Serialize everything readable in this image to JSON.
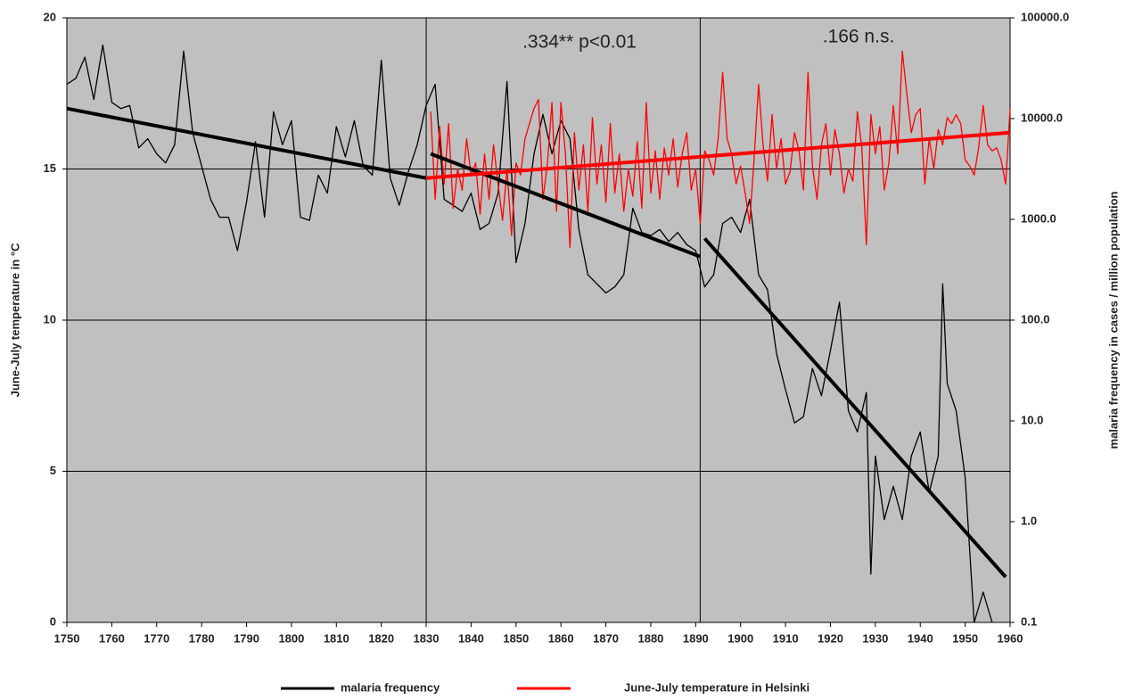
{
  "chart_data": {
    "type": "line",
    "y_label": "June-July temperature in °C",
    "y2_label": "malaria frequency in cases / million population",
    "annotations": [
      ".334** p<0.01",
      ".166 n.s."
    ],
    "xlim": [
      1750,
      1960
    ],
    "xticks": [
      1750,
      1760,
      1770,
      1780,
      1790,
      1800,
      1810,
      1820,
      1830,
      1840,
      1850,
      1860,
      1870,
      1880,
      1890,
      1900,
      1910,
      1920,
      1930,
      1940,
      1950,
      1960
    ],
    "ylim": [
      0,
      20
    ],
    "yticks": [
      0,
      5,
      10,
      15,
      20
    ],
    "y2lim": [
      0.1,
      100000
    ],
    "y2_log": true,
    "y2ticks": [
      0.1,
      {
        "value": 1,
        "label": "1.0"
      },
      {
        "value": 10,
        "label": "10.0"
      },
      {
        "value": 100,
        "label": "100.0"
      },
      {
        "value": 1000,
        "label": "1000.0"
      },
      {
        "value": 10000,
        "label": "10000.0"
      },
      {
        "value": 100000,
        "label": "100000.0"
      }
    ],
    "grid": true,
    "dividers": [
      1830,
      1891
    ],
    "legend": "bottom",
    "series": [
      {
        "name": "malaria frequency",
        "color": "#000000",
        "axis": "y2",
        "x": [
          1750,
          1752,
          1754,
          1756,
          1758,
          1760,
          1762,
          1764,
          1766,
          1768,
          1770,
          1772,
          1774,
          1776,
          1778,
          1780,
          1782,
          1784,
          1786,
          1788,
          1790,
          1792,
          1794,
          1796,
          1798,
          1800,
          1802,
          1804,
          1806,
          1808,
          1810,
          1812,
          1814,
          1816,
          1818,
          1820,
          1822,
          1824,
          1826,
          1828,
          1830,
          1832,
          1834,
          1836,
          1838,
          1840,
          1842,
          1844,
          1846,
          1848,
          1850,
          1852,
          1854,
          1856,
          1858,
          1860,
          1862,
          1864,
          1866,
          1868,
          1870,
          1872,
          1874,
          1876,
          1878,
          1880,
          1882,
          1884,
          1886,
          1888,
          1890,
          1892,
          1894,
          1896,
          1898,
          1900,
          1902,
          1904,
          1906,
          1908,
          1910,
          1912,
          1914,
          1916,
          1918,
          1920,
          1922,
          1924,
          1926,
          1928,
          1929,
          1930,
          1932,
          1934,
          1936,
          1938,
          1940,
          1942,
          1944,
          1945,
          1946,
          1948,
          1950,
          1952,
          1954,
          1956
        ],
        "values": [
          21900,
          25100,
          40700,
          15500,
          53700,
          14500,
          12600,
          13500,
          5130,
          6310,
          4470,
          3630,
          5500,
          46800,
          7240,
          3390,
          1580,
          1050,
          1050,
          490,
          1480,
          5890,
          1050,
          11700,
          5500,
          9550,
          1050,
          977,
          2750,
          1820,
          8320,
          4170,
          9550,
          3390,
          2750,
          38000,
          2570,
          1380,
          2950,
          5500,
          13500,
          21900,
          1580,
          1380,
          1200,
          1820,
          794,
          912,
          1820,
          23400,
          372,
          912,
          4470,
          11000,
          4470,
          9550,
          6310,
          794,
          282,
          229,
          186,
          214,
          282,
          1290,
          741,
          692,
          794,
          603,
          741,
          562,
          490,
          214,
          282,
          912,
          1050,
          741,
          1580,
          282,
          200,
          46.8,
          20.4,
          9.55,
          11.0,
          33.1,
          17.8,
          50.1,
          151,
          12.6,
          7.76,
          19.1,
          0.302,
          4.47,
          1.05,
          2.24,
          1.05,
          4.47,
          7.76,
          1.95,
          4.47,
          229,
          23.4,
          12.6,
          2.75,
          0.1,
          0.2,
          0.1
        ]
      },
      {
        "name": "June-July temperature in Helsinki",
        "color": "#ff0000",
        "x": [
          1831,
          1832,
          1833,
          1834,
          1835,
          1836,
          1837,
          1838,
          1839,
          1840,
          1841,
          1842,
          1843,
          1844,
          1845,
          1846,
          1847,
          1848,
          1849,
          1850,
          1851,
          1852,
          1853,
          1854,
          1855,
          1856,
          1857,
          1858,
          1859,
          1860,
          1861,
          1862,
          1863,
          1864,
          1865,
          1866,
          1867,
          1868,
          1869,
          1870,
          1871,
          1872,
          1873,
          1874,
          1875,
          1876,
          1877,
          1878,
          1879,
          1880,
          1881,
          1882,
          1883,
          1884,
          1885,
          1886,
          1887,
          1888,
          1889,
          1890,
          1891,
          1892,
          1893,
          1894,
          1895,
          1896,
          1897,
          1898,
          1899,
          1900,
          1901,
          1902,
          1903,
          1904,
          1905,
          1906,
          1907,
          1908,
          1909,
          1910,
          1911,
          1912,
          1913,
          1914,
          1915,
          1916,
          1917,
          1918,
          1919,
          1920,
          1921,
          1922,
          1923,
          1924,
          1925,
          1926,
          1927,
          1928,
          1929,
          1930,
          1931,
          1932,
          1933,
          1934,
          1935,
          1936,
          1937,
          1938,
          1939,
          1940,
          1941,
          1942,
          1943,
          1944,
          1945,
          1946,
          1947,
          1948,
          1949,
          1950,
          1951,
          1952,
          1953,
          1954,
          1955,
          1956,
          1957,
          1958,
          1959,
          1960
        ],
        "values": [
          16.9,
          14.0,
          16.4,
          14.5,
          16.5,
          13.7,
          15.0,
          14.3,
          16.0,
          14.8,
          15.2,
          13.5,
          15.5,
          14.0,
          15.8,
          14.5,
          13.3,
          15.0,
          12.8,
          15.2,
          14.8,
          16.0,
          16.5,
          17.0,
          17.3,
          14.0,
          15.2,
          17.2,
          13.6,
          17.2,
          15.5,
          12.4,
          16.2,
          14.3,
          15.8,
          13.6,
          16.7,
          14.5,
          15.8,
          13.9,
          16.5,
          14.2,
          15.5,
          13.6,
          15.0,
          14.1,
          15.9,
          13.7,
          17.2,
          14.2,
          15.6,
          14.0,
          15.7,
          14.8,
          16.0,
          14.4,
          15.5,
          16.2,
          14.3,
          15.0,
          13.2,
          15.6,
          15.3,
          14.8,
          16.0,
          18.2,
          16.0,
          15.5,
          14.5,
          15.1,
          14.2,
          13.2,
          15.3,
          17.8,
          15.8,
          14.6,
          16.8,
          15.0,
          16.0,
          14.5,
          14.9,
          16.2,
          15.6,
          14.3,
          18.2,
          15.1,
          14.0,
          15.8,
          16.5,
          14.8,
          16.3,
          15.5,
          14.2,
          15.0,
          14.6,
          16.9,
          15.7,
          12.5,
          16.8,
          15.5,
          16.4,
          14.3,
          15.2,
          17.1,
          15.5,
          18.9,
          17.5,
          16.2,
          16.8,
          17.0,
          14.5,
          16.0,
          15.0,
          16.3,
          15.8,
          16.7,
          16.5,
          16.8,
          16.5,
          15.3,
          15.1,
          14.8,
          15.7,
          17.1,
          15.8,
          15.6,
          15.7,
          15.3,
          14.5,
          17.0
        ]
      }
    ],
    "trends": [
      {
        "color": "#000000",
        "axis": "y2",
        "x": [
          1750,
          1830
        ],
        "values": [
          12600,
          2570
        ]
      },
      {
        "color": "#000000",
        "axis": "y2",
        "x": [
          1831,
          1891
        ],
        "values": [
          4470,
          427
        ]
      },
      {
        "color": "#000000",
        "axis": "y2",
        "x": [
          1892,
          1959
        ],
        "values": [
          646,
          0.282
        ]
      },
      {
        "color": "#ff0000",
        "x": [
          1830,
          1960
        ],
        "values": [
          14.7,
          16.2
        ]
      }
    ]
  }
}
